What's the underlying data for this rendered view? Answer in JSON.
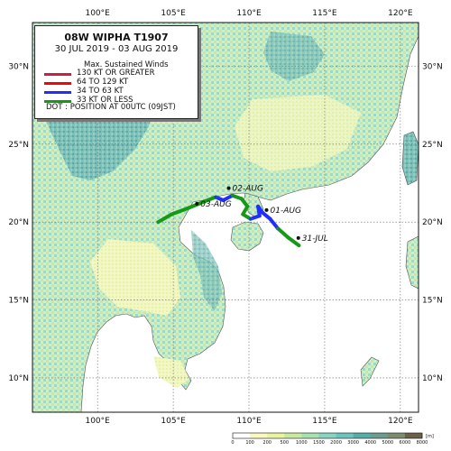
{
  "legend": {
    "title": "08W  WIPHA  T1907",
    "period": "30 JUL 2019 - 03 AUG 2019",
    "heading": "Max. Sustained Winds",
    "categories": [
      {
        "label": "130 KT OR GREATER",
        "color": "#c8204a"
      },
      {
        "label": "64 TO 129 KT",
        "color": "#ff0000"
      },
      {
        "label": "34 TO 63 KT",
        "color": "#1f2fff"
      },
      {
        "label": "33 KT OR LESS",
        "color": "#169a16"
      }
    ],
    "dot_note": "DOT : POSITION AT 00UTC (09JST)"
  },
  "map": {
    "lon_labels": [
      "100°E",
      "105°E",
      "110°E",
      "115°E",
      "120°E"
    ],
    "lat_labels": [
      "30°N",
      "25°N",
      "20°N",
      "15°N",
      "10°N"
    ],
    "lon_values": [
      100,
      105,
      110,
      115,
      120
    ],
    "lat_values": [
      30,
      25,
      20,
      15,
      10
    ],
    "extent": {
      "lon_min": 95.7,
      "lon_max": 121.2,
      "lat_min": 7.8,
      "lat_max": 32.8
    },
    "track": [
      {
        "lon": 113.3,
        "lat": 18.5,
        "wind": "33 KT OR LESS"
      },
      {
        "lon": 112.6,
        "lat": 19.0,
        "wind": "33 KT OR LESS"
      },
      {
        "lon": 111.9,
        "lat": 19.6,
        "wind": "33 KT OR LESS"
      },
      {
        "lon": 111.4,
        "lat": 20.2,
        "wind": "34 TO 63 KT"
      },
      {
        "lon": 110.9,
        "lat": 20.6,
        "wind": "34 TO 63 KT"
      },
      {
        "lon": 110.6,
        "lat": 21.0,
        "wind": "34 TO 63 KT"
      },
      {
        "lon": 110.7,
        "lat": 20.4,
        "wind": "34 TO 63 KT"
      },
      {
        "lon": 110.1,
        "lat": 20.2,
        "wind": "34 TO 63 KT"
      },
      {
        "lon": 109.6,
        "lat": 20.5,
        "wind": "33 KT OR LESS"
      },
      {
        "lon": 109.9,
        "lat": 21.0,
        "wind": "33 KT OR LESS"
      },
      {
        "lon": 109.5,
        "lat": 21.5,
        "wind": "33 KT OR LESS"
      },
      {
        "lon": 108.9,
        "lat": 21.7,
        "wind": "33 KT OR LESS"
      },
      {
        "lon": 108.3,
        "lat": 21.4,
        "wind": "34 TO 63 KT"
      },
      {
        "lon": 107.8,
        "lat": 21.6,
        "wind": "34 TO 63 KT"
      },
      {
        "lon": 107.0,
        "lat": 21.3,
        "wind": "33 KT OR LESS"
      },
      {
        "lon": 106.0,
        "lat": 20.9,
        "wind": "33 KT OR LESS"
      },
      {
        "lon": 104.9,
        "lat": 20.5,
        "wind": "33 KT OR LESS"
      },
      {
        "lon": 104.0,
        "lat": 20.0,
        "wind": "33 KT OR LESS"
      }
    ],
    "date_labels": [
      {
        "text": "31-JUL",
        "lon": 113.5,
        "lat": 18.8
      },
      {
        "text": "01-AUG",
        "lon": 111.4,
        "lat": 20.6
      },
      {
        "text": "02-AUG",
        "lon": 108.9,
        "lat": 22.0
      },
      {
        "text": "03-AUG",
        "lon": 106.8,
        "lat": 21.0
      }
    ]
  },
  "colorbar": {
    "labels": [
      "0",
      "100",
      "200",
      "500",
      "1000",
      "1500",
      "2000",
      "3000",
      "4000",
      "5000",
      "6000",
      "8000"
    ],
    "unit": "[m]",
    "colors": [
      "#ffffff",
      "#f8f8c0",
      "#e8f4a0",
      "#c8eaa0",
      "#a8e0b0",
      "#88d4c0",
      "#6cc4bc",
      "#58aca8",
      "#6c9c90",
      "#7c8c70",
      "#6c6048"
    ]
  }
}
